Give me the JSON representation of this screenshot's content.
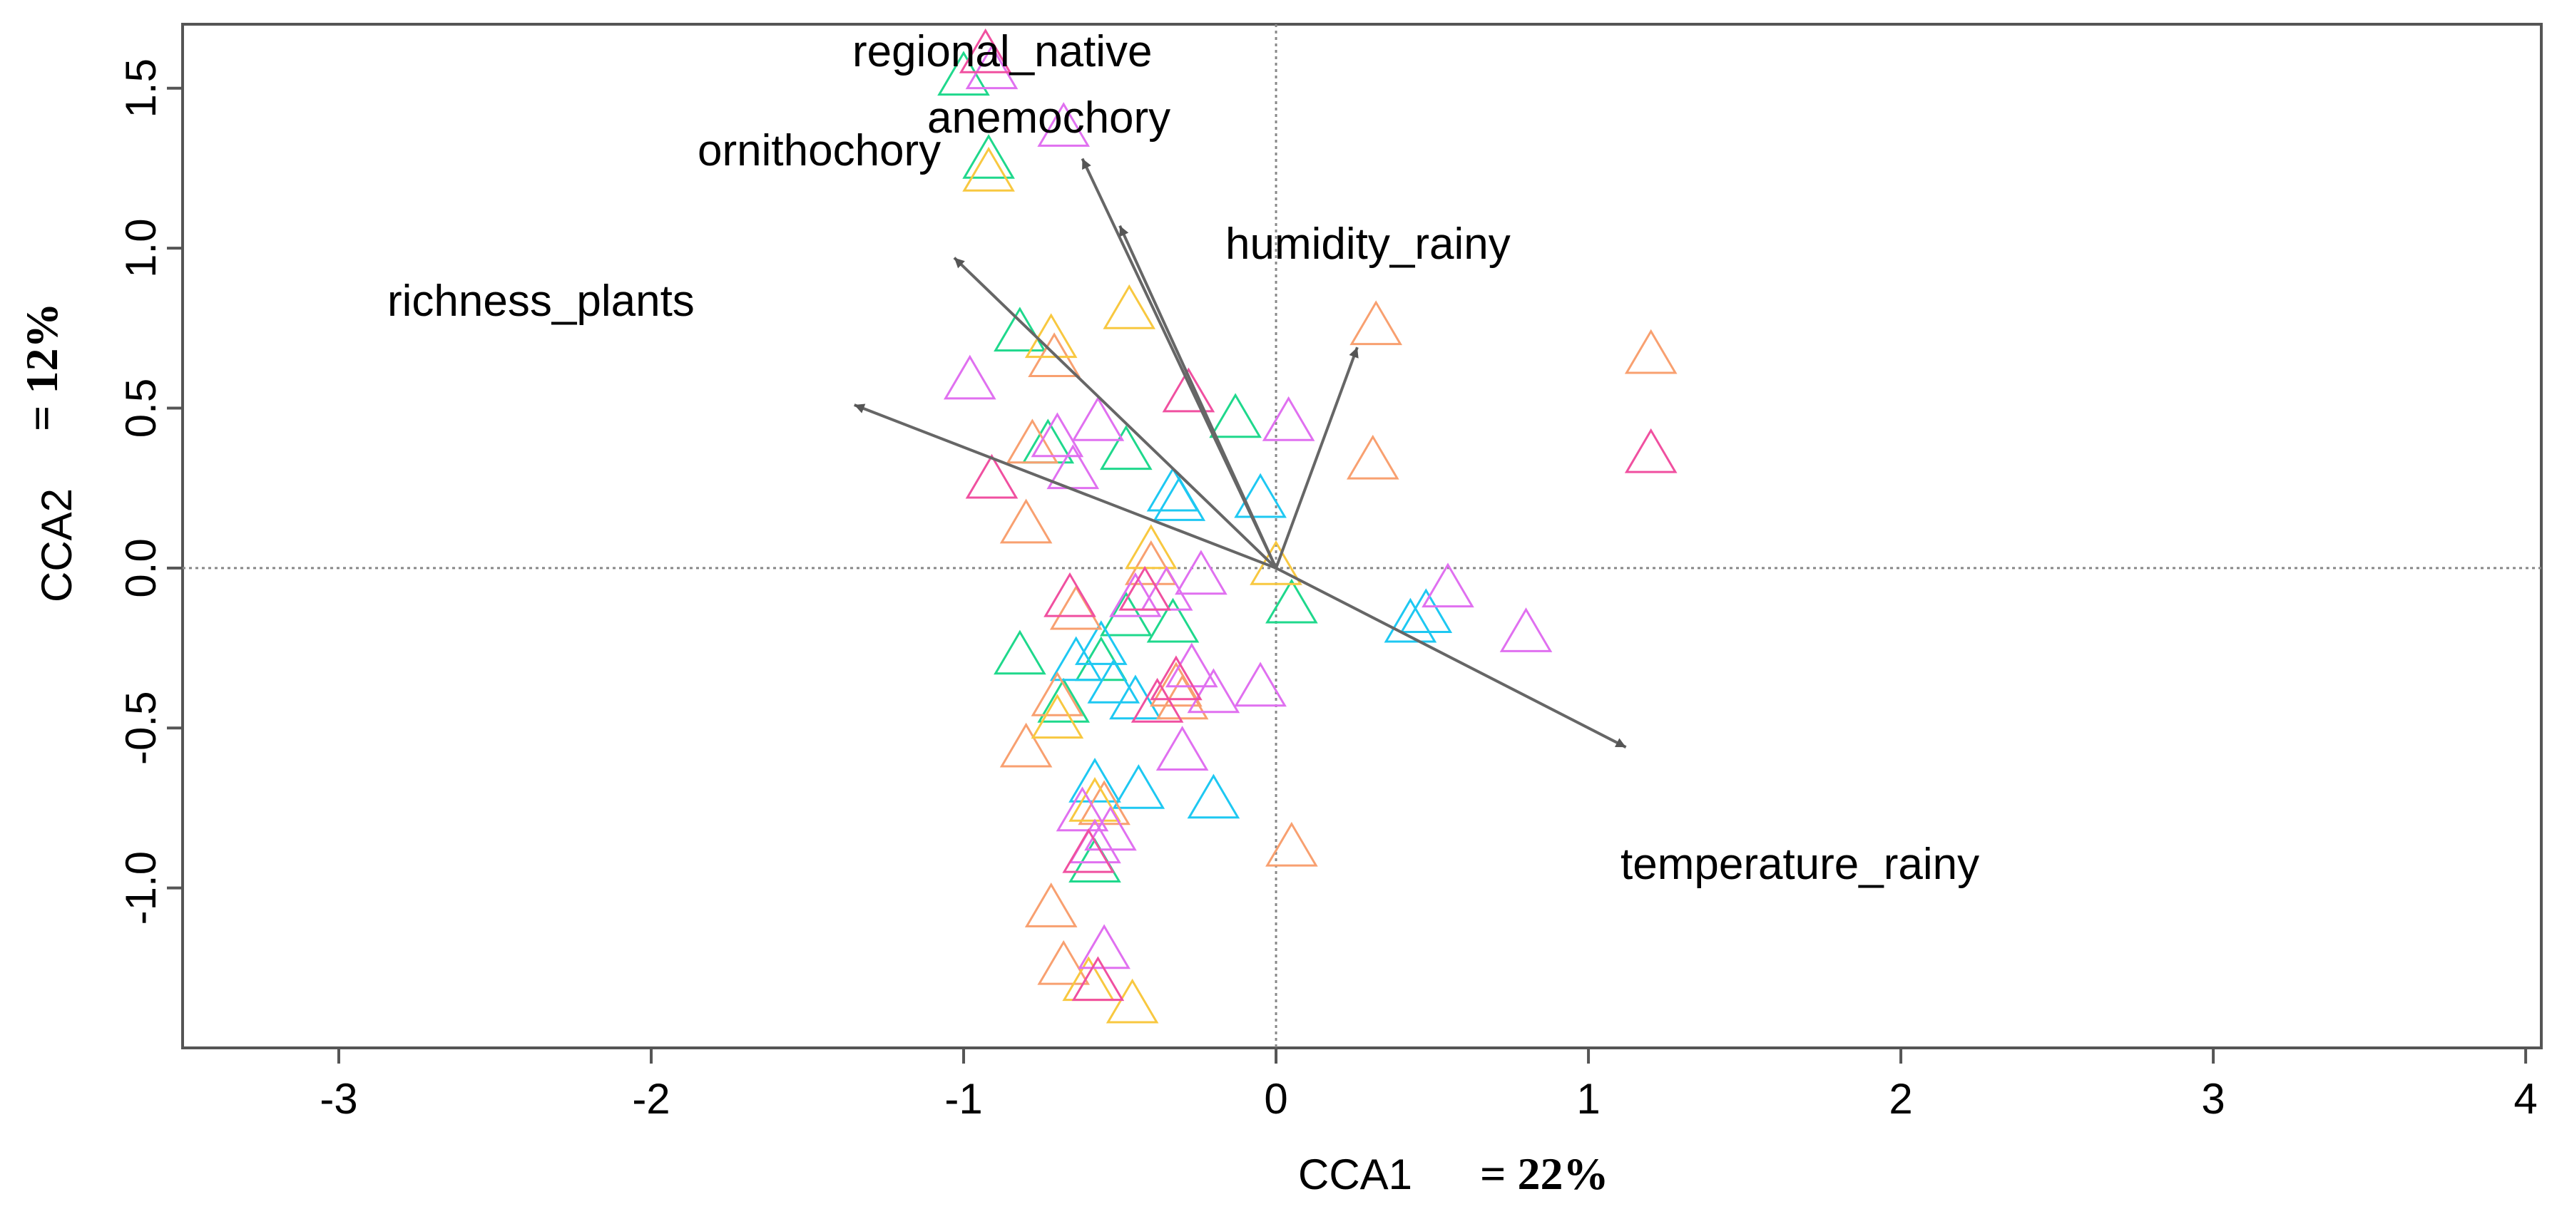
{
  "chart_data": {
    "type": "scatter",
    "title": "",
    "xlabel": "CCA1",
    "xlabel_pct": "= 22%",
    "ylabel": "CCA2",
    "ylabel_pct": "= 12%",
    "xlim": [
      -3.5,
      4.05
    ],
    "ylim": [
      -1.5,
      1.7
    ],
    "xticks": [
      -3,
      -2,
      -1,
      0,
      1,
      2,
      3,
      4
    ],
    "yticks": [
      -1.0,
      -0.5,
      0.0,
      0.5,
      1.0,
      1.5
    ],
    "ytick_labels": [
      "-1.0",
      "-0.5",
      "0.0",
      "0.5",
      "1.0",
      "1.5"
    ],
    "grid": false,
    "reference_lines": {
      "x": 0,
      "y": 0,
      "style": "dotted"
    },
    "marker": "open-triangle",
    "arrows": [
      {
        "name": "regional_native",
        "x": -0.62,
        "y": 1.28
      },
      {
        "name": "anemochory",
        "x": -0.5,
        "y": 1.07
      },
      {
        "name": "ornithochory",
        "x": -1.03,
        "y": 0.97
      },
      {
        "name": "richness_plants",
        "x": -1.35,
        "y": 0.51
      },
      {
        "name": "humidity_rainy",
        "x": 0.26,
        "y": 0.69
      },
      {
        "name": "temperature_rainy",
        "x": 1.12,
        "y": -0.56
      }
    ],
    "series": [
      {
        "name": "green",
        "color": "#1fd88c",
        "points": [
          [
            -1.0,
            1.53
          ],
          [
            -0.92,
            1.27
          ],
          [
            -0.82,
            0.73
          ],
          [
            -0.73,
            0.38
          ],
          [
            -0.48,
            0.36
          ],
          [
            -0.13,
            0.46
          ],
          [
            -0.82,
            -0.28
          ],
          [
            -0.48,
            -0.16
          ],
          [
            -0.33,
            -0.18
          ],
          [
            -0.68,
            -0.43
          ],
          [
            -0.58,
            -0.93
          ],
          [
            0.05,
            -0.12
          ],
          [
            -0.56,
            -0.3
          ]
        ]
      },
      {
        "name": "cyan",
        "color": "#1ec8f2",
        "points": [
          [
            -0.33,
            0.23
          ],
          [
            -0.31,
            0.2
          ],
          [
            -0.05,
            0.21
          ],
          [
            0.43,
            -0.18
          ],
          [
            0.48,
            -0.15
          ],
          [
            -0.64,
            -0.3
          ],
          [
            -0.52,
            -0.37
          ],
          [
            -0.45,
            -0.42
          ],
          [
            -0.58,
            -0.68
          ],
          [
            -0.44,
            -0.7
          ],
          [
            -0.2,
            -0.73
          ],
          [
            -0.56,
            -0.25
          ]
        ]
      },
      {
        "name": "orange",
        "color": "#f8a070",
        "points": [
          [
            -0.71,
            0.65
          ],
          [
            0.32,
            0.75
          ],
          [
            1.2,
            0.66
          ],
          [
            0.31,
            0.33
          ],
          [
            -0.78,
            0.38
          ],
          [
            -0.8,
            0.13
          ],
          [
            -0.4,
            0.0
          ],
          [
            -0.64,
            -0.14
          ],
          [
            -0.7,
            -0.41
          ],
          [
            -0.8,
            -0.57
          ],
          [
            -0.3,
            -0.42
          ],
          [
            -0.55,
            -0.75
          ],
          [
            0.05,
            -0.88
          ],
          [
            -0.72,
            -1.07
          ],
          [
            -0.68,
            -1.25
          ],
          [
            -0.32,
            -0.38
          ]
        ]
      },
      {
        "name": "yellow",
        "color": "#f8c840",
        "points": [
          [
            -0.92,
            1.23
          ],
          [
            -0.72,
            0.71
          ],
          [
            -0.47,
            0.8
          ],
          [
            -0.58,
            -0.74
          ],
          [
            -0.46,
            -1.37
          ],
          [
            -0.6,
            -1.3
          ],
          [
            0.0,
            0.0
          ],
          [
            -0.4,
            0.05
          ],
          [
            -0.7,
            -0.48
          ]
        ]
      },
      {
        "name": "magenta",
        "color": "#e070f0",
        "points": [
          [
            -0.91,
            1.55
          ],
          [
            -0.68,
            1.37
          ],
          [
            -0.98,
            0.58
          ],
          [
            -0.7,
            0.4
          ],
          [
            -0.57,
            0.45
          ],
          [
            -0.65,
            0.3
          ],
          [
            0.04,
            0.45
          ],
          [
            -0.24,
            -0.03
          ],
          [
            0.55,
            -0.07
          ],
          [
            0.8,
            -0.21
          ],
          [
            -0.27,
            -0.32
          ],
          [
            -0.2,
            -0.4
          ],
          [
            -0.05,
            -0.38
          ],
          [
            -0.35,
            -0.08
          ],
          [
            -0.3,
            -0.58
          ],
          [
            -0.62,
            -0.77
          ],
          [
            -0.58,
            -0.87
          ],
          [
            -0.53,
            -0.83
          ],
          [
            -0.55,
            -1.2
          ],
          [
            -0.45,
            -0.1
          ]
        ]
      },
      {
        "name": "pink",
        "color": "#f050a0",
        "points": [
          [
            -0.93,
            1.6
          ],
          [
            -0.28,
            0.54
          ],
          [
            1.2,
            0.35
          ],
          [
            -0.91,
            0.27
          ],
          [
            -0.42,
            -0.08
          ],
          [
            -0.32,
            -0.36
          ],
          [
            -0.6,
            -0.9
          ],
          [
            -0.57,
            -1.3
          ],
          [
            -0.38,
            -0.43
          ],
          [
            -0.66,
            -0.1
          ]
        ]
      }
    ]
  }
}
